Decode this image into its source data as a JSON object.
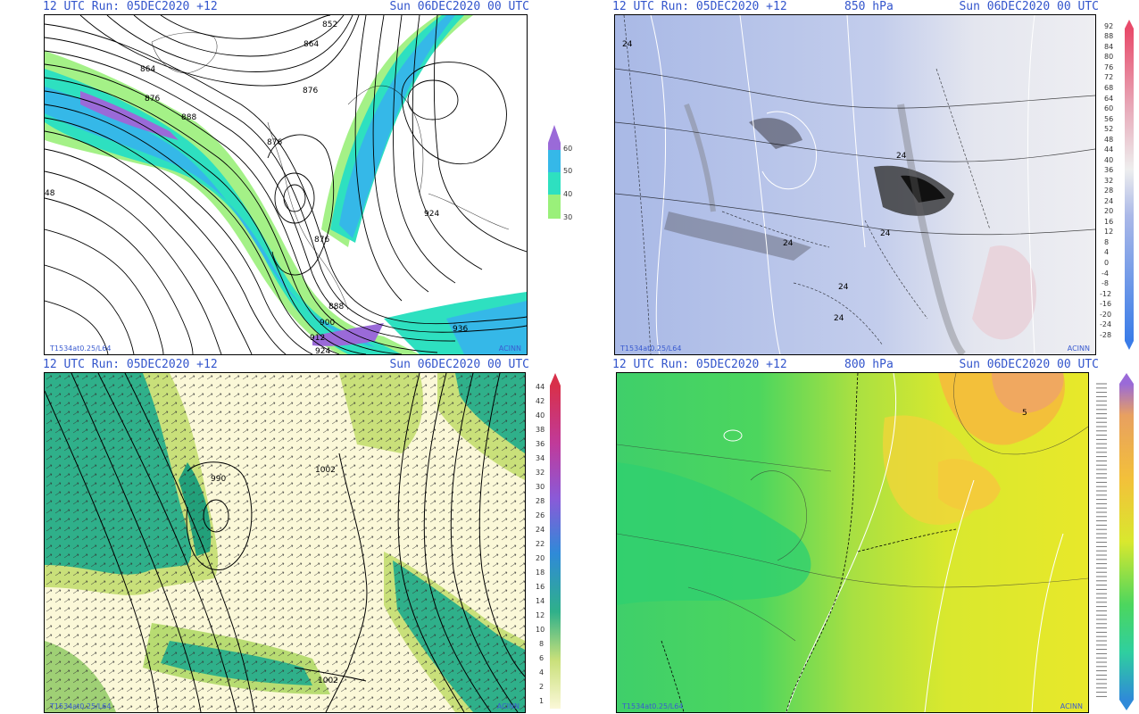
{
  "panels": [
    {
      "id": "tl",
      "header": {
        "run": "12 UTC Run: 05DEC2020 +12",
        "level": "",
        "valid": "Sun 06DEC2020 00 UTC"
      },
      "stamp": "T1534at0.25/L64",
      "brand": "ACINN",
      "contour_labels": [
        "852",
        "864",
        "864",
        "876",
        "876",
        "888",
        "876",
        "876",
        "48",
        "924",
        "888",
        "900",
        "912",
        "924",
        "936"
      ],
      "colorbar": {
        "ticks": [
          "60",
          "50",
          "40",
          "30"
        ],
        "colors": [
          "#9a6ad8",
          "#35b8e8",
          "#2ee0c0",
          "#9af07a"
        ]
      }
    },
    {
      "id": "tr",
      "header": {
        "run": "12 UTC Run: 05DEC2020 +12",
        "level": "850 hPa",
        "valid": "Sun 06DEC2020 00 UTC"
      },
      "stamp": "T1534at0.25/L64",
      "brand": "ACINN",
      "contour_labels": [
        "24",
        "24",
        "24",
        "24",
        "24",
        "24"
      ],
      "colorbar": {
        "ticks": [
          "92",
          "88",
          "84",
          "80",
          "76",
          "72",
          "68",
          "64",
          "60",
          "56",
          "52",
          "48",
          "44",
          "40",
          "36",
          "32",
          "28",
          "24",
          "20",
          "16",
          "12",
          "8",
          "4",
          "0",
          "-4",
          "-8",
          "-12",
          "-16",
          "-20",
          "-24",
          "-28"
        ]
      }
    },
    {
      "id": "bl",
      "header": {
        "run": "12 UTC Run: 05DEC2020 +12",
        "level": "",
        "valid": "Sun 06DEC2020 00 UTC"
      },
      "stamp": "T1534at0.25/L64",
      "brand": "ACINN",
      "contour_labels": [
        "1002",
        "990",
        "1002"
      ],
      "colorbar": {
        "ticks": [
          "44",
          "42",
          "40",
          "38",
          "36",
          "34",
          "32",
          "30",
          "28",
          "26",
          "24",
          "22",
          "20",
          "18",
          "16",
          "14",
          "12",
          "10",
          "8",
          "6",
          "4",
          "2",
          "1"
        ]
      }
    },
    {
      "id": "br",
      "header": {
        "run": "12 UTC Run: 05DEC2020 +12",
        "level": "800 hPa",
        "valid": "Sun 06DEC2020 00 UTC"
      },
      "stamp": "T1534at0.25/L64",
      "brand": "ACINN",
      "contour_labels": [
        "5"
      ],
      "colorbar": {
        "ticks": []
      }
    }
  ]
}
